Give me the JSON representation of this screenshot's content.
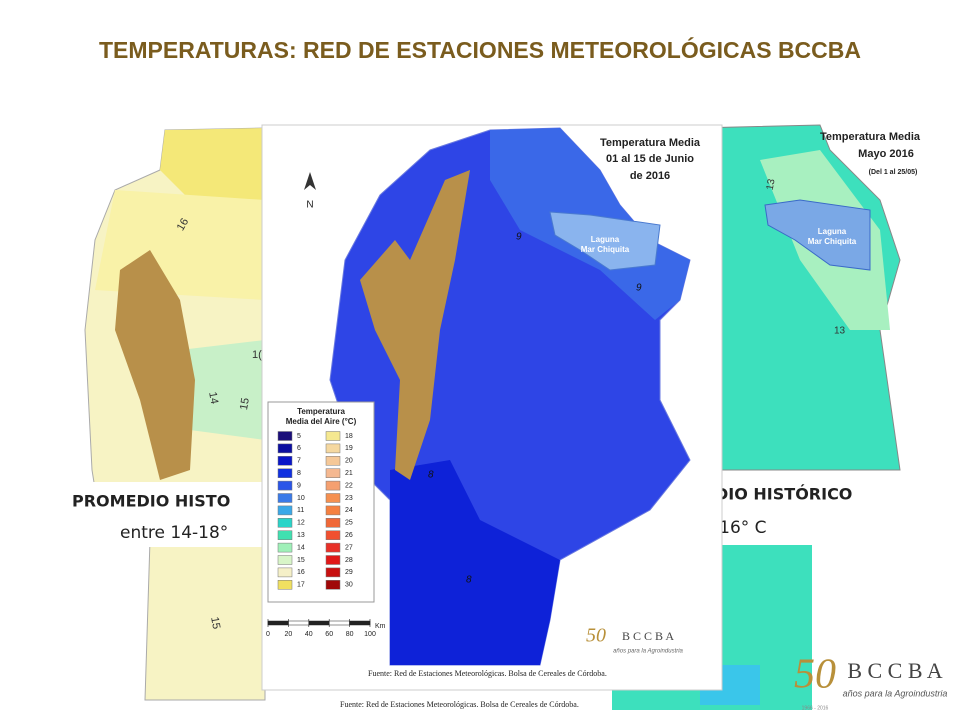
{
  "title": "TEMPERATURAS: RED DE ESTACIONES METEOROLÓGICAS BCCBA",
  "left_map": {
    "caption": [
      "PROMEDIO HISTO",
      "entre 14-18°"
    ],
    "contours": [
      "16",
      "14",
      "15",
      "15",
      "1("
    ],
    "source": "Fuente: Red de Estaciones Meteorológicas. Bolsa de Cereales de Córdoba."
  },
  "right_map": {
    "title": [
      "Temperatura Media",
      "Mayo 2016",
      "(Del 1 al 25/05)"
    ],
    "lake": [
      "Laguna",
      "Mar Chiquita"
    ],
    "contours": [
      "13",
      "13"
    ],
    "caption": [
      "DIO HISTÓRICO",
      "-16° C"
    ]
  },
  "center_map": {
    "title": [
      "Temperatura Media",
      "01 al 15 de Junio",
      "de 2016"
    ],
    "lake": [
      "Laguna",
      "Mar Chiquita"
    ],
    "contours": [
      "9",
      "9",
      "8",
      "8"
    ],
    "north": "N",
    "legend": {
      "title": [
        "Temperatura",
        "Media del Aire (°C)"
      ],
      "items": [
        {
          "label": 5,
          "color": "#1b0f7a"
        },
        {
          "label": 6,
          "color": "#0c0fa0"
        },
        {
          "label": 7,
          "color": "#0a16c8"
        },
        {
          "label": 8,
          "color": "#1030e0"
        },
        {
          "label": 9,
          "color": "#2a55e8"
        },
        {
          "label": 10,
          "color": "#3a7ae8"
        },
        {
          "label": 11,
          "color": "#3aa8e8"
        },
        {
          "label": 12,
          "color": "#2ad4c8"
        },
        {
          "label": 13,
          "color": "#40e0b0"
        },
        {
          "label": 14,
          "color": "#9ff0b8"
        },
        {
          "label": 15,
          "color": "#d8f5c8"
        },
        {
          "label": 16,
          "color": "#f5f0c8"
        },
        {
          "label": 17,
          "color": "#f0e060"
        },
        {
          "label": 18,
          "color": "#f5e890"
        },
        {
          "label": 19,
          "color": "#f5d8a0"
        },
        {
          "label": 20,
          "color": "#f5c898"
        },
        {
          "label": 21,
          "color": "#f5b890"
        },
        {
          "label": 22,
          "color": "#f5a070"
        },
        {
          "label": 23,
          "color": "#f59050"
        },
        {
          "label": 24,
          "color": "#f58040"
        },
        {
          "label": 25,
          "color": "#f06838"
        },
        {
          "label": 26,
          "color": "#f05030"
        },
        {
          "label": 27,
          "color": "#e83028"
        },
        {
          "label": 28,
          "color": "#e01818"
        },
        {
          "label": 29,
          "color": "#c81010"
        },
        {
          "label": 30,
          "color": "#a00808"
        }
      ]
    },
    "scale": {
      "unit": "Km",
      "ticks": [
        0,
        20,
        40,
        60,
        80,
        100
      ]
    },
    "source": "Fuente: Red de Estaciones Meteorológicas. Bolsa de Cereales de Córdoba.",
    "logo": {
      "number": "50",
      "name": "B C C B A",
      "tagline": "años para la Agroindustria"
    }
  },
  "logo": {
    "number": "50",
    "years": "1966 - 2016",
    "name": "B C C B A",
    "tagline": "años para la Agroindustria"
  }
}
